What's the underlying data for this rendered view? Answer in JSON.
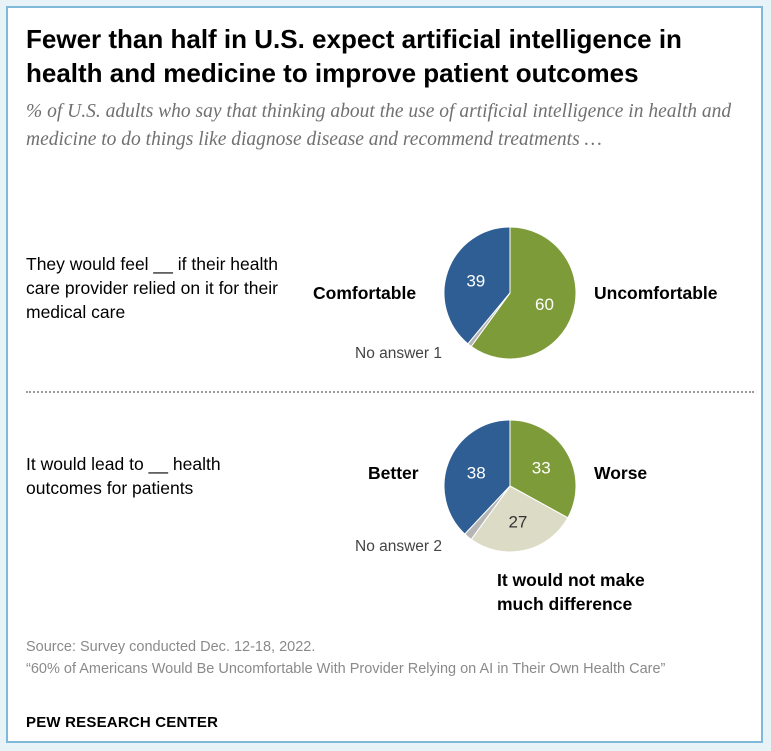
{
  "title": "Fewer than half in U.S. expect artificial intelligence in health and medicine to improve patient outcomes",
  "subtitle": "% of U.S. adults who say that thinking about the use of artificial intelligence in health and medicine to do things like diagnose disease and recommend treatments …",
  "colors": {
    "blue": "#2e5e93",
    "green": "#7d9b38",
    "beige": "#dcdcc6",
    "gray": "#b5b5b5",
    "dark_text": "#333333"
  },
  "chart_data": [
    {
      "type": "pie",
      "question": "They would feel __ if their health care provider relied on it for their medical care",
      "slices": [
        {
          "label": "Comfortable",
          "value": 39,
          "color": "#2e5e93"
        },
        {
          "label": "Uncomfortable",
          "value": 60,
          "color": "#7d9b38"
        },
        {
          "label": "No answer",
          "value": 1,
          "color": "#b5b5b5"
        }
      ],
      "no_answer_label": "No answer 1"
    },
    {
      "type": "pie",
      "question": "It would lead to __ health outcomes for patients",
      "slices": [
        {
          "label": "Better",
          "value": 38,
          "color": "#2e5e93"
        },
        {
          "label": "Worse",
          "value": 33,
          "color": "#7d9b38"
        },
        {
          "label": "It would not make much difference",
          "value": 27,
          "color": "#dcdcc6"
        },
        {
          "label": "No answer",
          "value": 2,
          "color": "#b5b5b5"
        }
      ],
      "no_answer_label": "No answer 2",
      "nodiff_label_line1": "It would not make",
      "nodiff_label_line2": "much difference"
    }
  ],
  "source_line1": "Source: Survey conducted Dec. 12-18, 2022.",
  "source_line2": "“60% of Americans Would Be Uncomfortable With Provider Relying on AI in Their Own Health Care”",
  "brand": "PEW RESEARCH CENTER"
}
